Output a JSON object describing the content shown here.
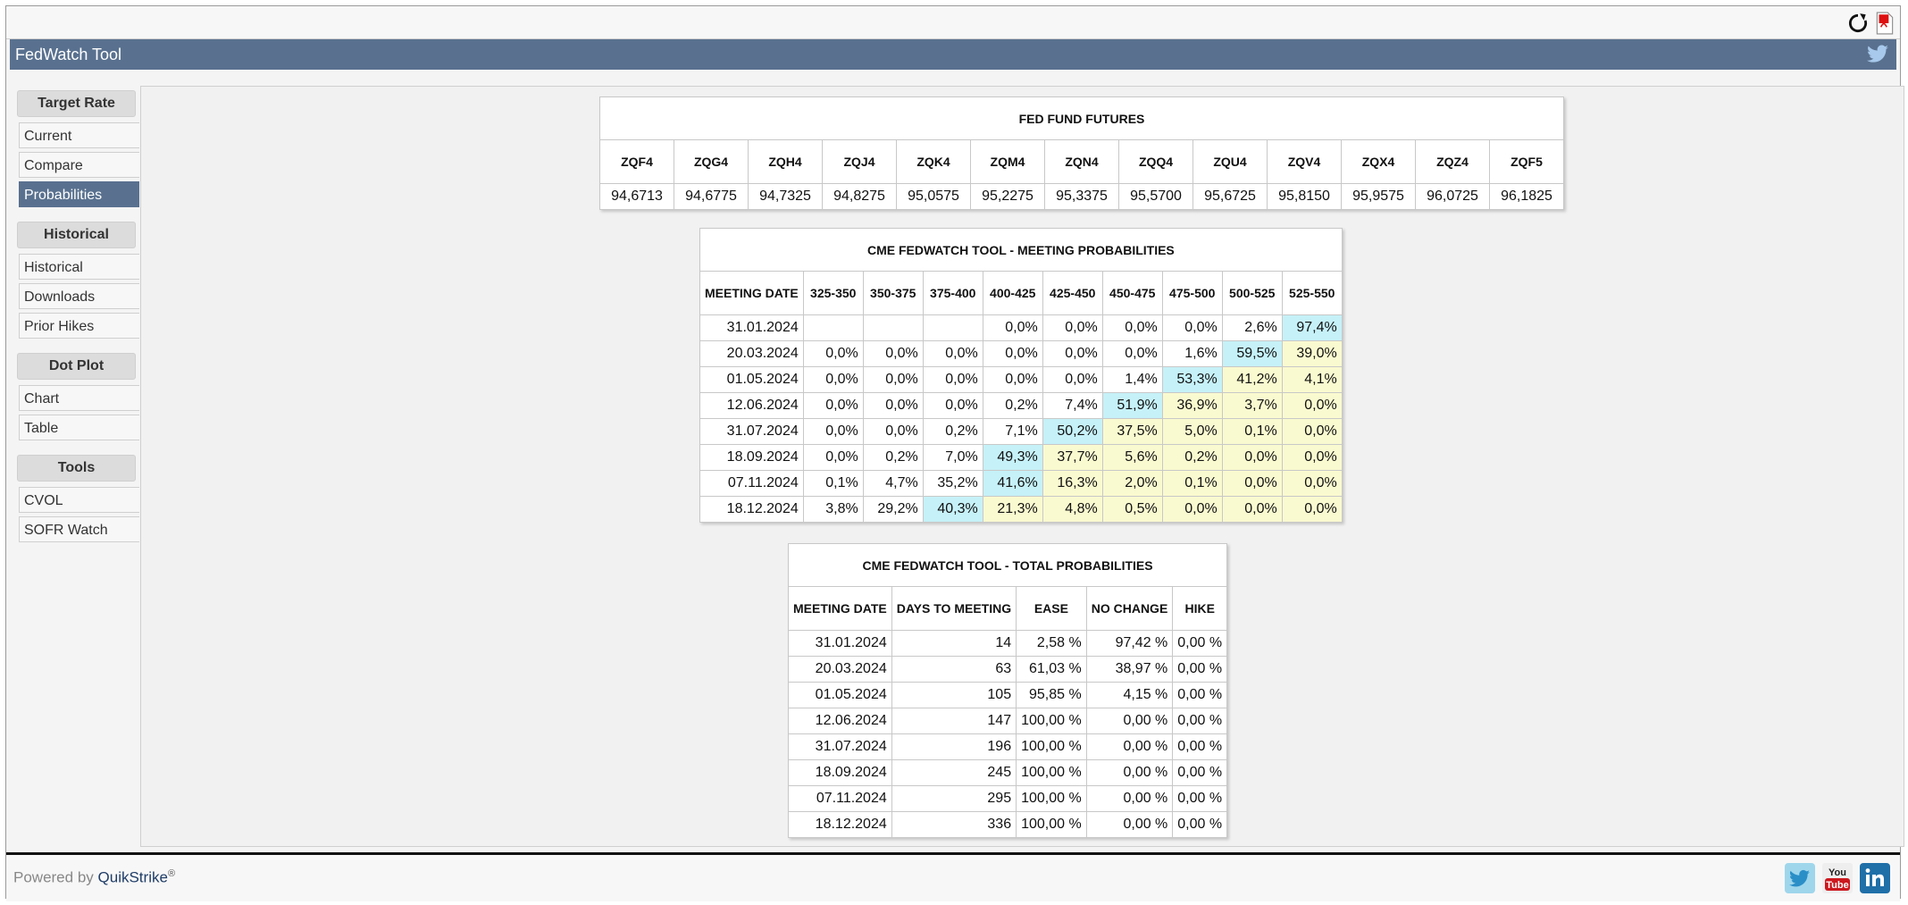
{
  "app": {
    "title": "FedWatch Tool"
  },
  "sidebar": {
    "groups": [
      {
        "heading": "Target Rate",
        "items": [
          "Current",
          "Compare",
          "Probabilities"
        ]
      },
      {
        "heading": "Historical",
        "items": [
          "Historical",
          "Downloads",
          "Prior Hikes"
        ]
      },
      {
        "heading": "Dot Plot",
        "items": [
          "Chart",
          "Table"
        ]
      },
      {
        "heading": "Tools",
        "items": [
          "CVOL",
          "SOFR Watch"
        ]
      }
    ],
    "active": "Probabilities"
  },
  "futures": {
    "title": "FED FUND FUTURES",
    "contracts": [
      "ZQF4",
      "ZQG4",
      "ZQH4",
      "ZQJ4",
      "ZQK4",
      "ZQM4",
      "ZQN4",
      "ZQQ4",
      "ZQU4",
      "ZQV4",
      "ZQX4",
      "ZQZ4",
      "ZQF5"
    ],
    "prices": [
      "94,6713",
      "94,6775",
      "94,7325",
      "94,8275",
      "95,0575",
      "95,2275",
      "95,3375",
      "95,5700",
      "95,6725",
      "95,8150",
      "95,9575",
      "96,0725",
      "96,1825"
    ]
  },
  "meeting_probabilities": {
    "title": "CME FEDWATCH TOOL - MEETING PROBABILITIES",
    "date_header": "MEETING DATE",
    "ranges": [
      "325-350",
      "350-375",
      "375-400",
      "400-425",
      "425-450",
      "450-475",
      "475-500",
      "500-525",
      "525-550"
    ],
    "rows": [
      {
        "date": "31.01.2024",
        "values": [
          "",
          "",
          "",
          "0,0%",
          "0,0%",
          "0,0%",
          "0,0%",
          "2,6%",
          "97,4%"
        ],
        "highlight": [
          "",
          "",
          "",
          "",
          "",
          "",
          "",
          "",
          "c"
        ]
      },
      {
        "date": "20.03.2024",
        "values": [
          "0,0%",
          "0,0%",
          "0,0%",
          "0,0%",
          "0,0%",
          "0,0%",
          "1,6%",
          "59,5%",
          "39,0%"
        ],
        "highlight": [
          "",
          "",
          "",
          "",
          "",
          "",
          "",
          "c",
          "y"
        ]
      },
      {
        "date": "01.05.2024",
        "values": [
          "0,0%",
          "0,0%",
          "0,0%",
          "0,0%",
          "0,0%",
          "1,4%",
          "53,3%",
          "41,2%",
          "4,1%"
        ],
        "highlight": [
          "",
          "",
          "",
          "",
          "",
          "",
          "c",
          "y",
          "y"
        ]
      },
      {
        "date": "12.06.2024",
        "values": [
          "0,0%",
          "0,0%",
          "0,0%",
          "0,2%",
          "7,4%",
          "51,9%",
          "36,9%",
          "3,7%",
          "0,0%"
        ],
        "highlight": [
          "",
          "",
          "",
          "",
          "",
          "c",
          "y",
          "y",
          "y"
        ]
      },
      {
        "date": "31.07.2024",
        "values": [
          "0,0%",
          "0,0%",
          "0,2%",
          "7,1%",
          "50,2%",
          "37,5%",
          "5,0%",
          "0,1%",
          "0,0%"
        ],
        "highlight": [
          "",
          "",
          "",
          "",
          "c",
          "y",
          "y",
          "y",
          "y"
        ]
      },
      {
        "date": "18.09.2024",
        "values": [
          "0,0%",
          "0,2%",
          "7,0%",
          "49,3%",
          "37,7%",
          "5,6%",
          "0,2%",
          "0,0%",
          "0,0%"
        ],
        "highlight": [
          "",
          "",
          "",
          "c",
          "y",
          "y",
          "y",
          "y",
          "y"
        ]
      },
      {
        "date": "07.11.2024",
        "values": [
          "0,1%",
          "4,7%",
          "35,2%",
          "41,6%",
          "16,3%",
          "2,0%",
          "0,1%",
          "0,0%",
          "0,0%"
        ],
        "highlight": [
          "",
          "",
          "",
          "c",
          "y",
          "y",
          "y",
          "y",
          "y"
        ]
      },
      {
        "date": "18.12.2024",
        "values": [
          "3,8%",
          "29,2%",
          "40,3%",
          "21,3%",
          "4,8%",
          "0,5%",
          "0,0%",
          "0,0%",
          "0,0%"
        ],
        "highlight": [
          "",
          "",
          "c",
          "y",
          "y",
          "y",
          "y",
          "y",
          "y"
        ]
      }
    ]
  },
  "total_probabilities": {
    "title": "CME FEDWATCH TOOL - TOTAL PROBABILITIES",
    "headers": [
      "MEETING DATE",
      "DAYS TO MEETING",
      "EASE",
      "NO CHANGE",
      "HIKE"
    ],
    "rows": [
      [
        "31.01.2024",
        "14",
        "2,58 %",
        "97,42 %",
        "0,00 %"
      ],
      [
        "20.03.2024",
        "63",
        "61,03 %",
        "38,97 %",
        "0,00 %"
      ],
      [
        "01.05.2024",
        "105",
        "95,85 %",
        "4,15 %",
        "0,00 %"
      ],
      [
        "12.06.2024",
        "147",
        "100,00 %",
        "0,00 %",
        "0,00 %"
      ],
      [
        "31.07.2024",
        "196",
        "100,00 %",
        "0,00 %",
        "0,00 %"
      ],
      [
        "18.09.2024",
        "245",
        "100,00 %",
        "0,00 %",
        "0,00 %"
      ],
      [
        "07.11.2024",
        "295",
        "100,00 %",
        "0,00 %",
        "0,00 %"
      ],
      [
        "18.12.2024",
        "336",
        "100,00 %",
        "0,00 %",
        "0,00 %"
      ]
    ]
  },
  "footer": {
    "powered_by": "Powered by",
    "brand": "QuikStrike",
    "reg": "®",
    "youtube_label": "You Tube"
  },
  "colors": {
    "header": "#59718f",
    "cyan": "#c6f1f8",
    "yellow": "#fafad0"
  }
}
